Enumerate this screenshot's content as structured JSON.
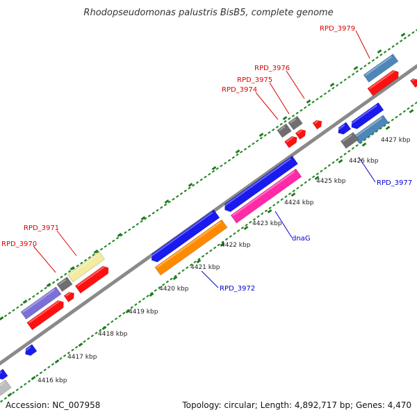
{
  "title": "Rhodopseudomonas palustris BisB5, complete genome",
  "accession": "Accession: NC_007958",
  "summary": "Topology: circular; Length: 4,892,717 bp; Genes: 4,470",
  "colors": {
    "backbone": "#888888",
    "tick_dot": "#2a8a2a",
    "tick_major": "#1f7a1f",
    "label_forward": "#dd0000",
    "label_reverse": "#0000cc",
    "blue": "#1a1aee",
    "red": "#ff1010",
    "gray": "#6f6f6f",
    "steelblue": "#4f86b8",
    "lavender": "#7b6fd8",
    "yellow": "#f2eca0",
    "orange": "#ff8a00",
    "pink": "#ff2aa8",
    "silver": "#bdbdbd"
  },
  "scale": {
    "unit": "kbp",
    "ticks": [
      {
        "label": "4416 kbp"
      },
      {
        "label": "4417 kbp"
      },
      {
        "label": "4418 kbp"
      },
      {
        "label": "4419 kbp"
      },
      {
        "label": "4420 kbp"
      },
      {
        "label": "4421 kbp"
      },
      {
        "label": "4422 kbp"
      },
      {
        "label": "4423 kbp"
      },
      {
        "label": "4424 kbp"
      },
      {
        "label": "4425 kbp"
      },
      {
        "label": "4426 kbp"
      },
      {
        "label": "4427 kbp"
      }
    ]
  },
  "gene_labels": [
    {
      "name": "RPD_3979",
      "strand": "forward"
    },
    {
      "name": "RPD_3976",
      "strand": "forward"
    },
    {
      "name": "RPD_3975",
      "strand": "forward"
    },
    {
      "name": "RPD_3974",
      "strand": "forward"
    },
    {
      "name": "RPD_3971",
      "strand": "forward"
    },
    {
      "name": "RPD_3970",
      "strand": "forward"
    },
    {
      "name": "RPD_3977",
      "strand": "reverse"
    },
    {
      "name": "dnaG",
      "strand": "reverse"
    },
    {
      "name": "RPD_3972",
      "strand": "reverse"
    }
  ]
}
